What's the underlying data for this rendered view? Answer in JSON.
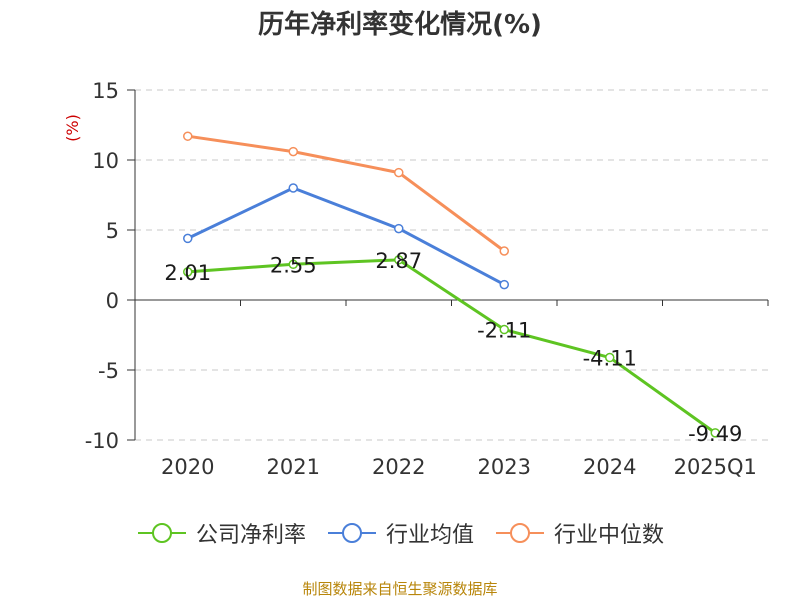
{
  "title": "历年净利率变化情况(%)",
  "footer": "制图数据来自恒生聚源数据库",
  "chart_data": {
    "type": "line",
    "categories": [
      "2020",
      "2021",
      "2022",
      "2023",
      "2024",
      "2025Q1"
    ],
    "ylabel": "(%)",
    "ylim": [
      -10,
      15
    ],
    "yticks": [
      15,
      10,
      5,
      0,
      -5,
      -10
    ],
    "grid": true,
    "legend_position": "bottom",
    "series": [
      {
        "name": "公司净利率",
        "color": "#5ec422",
        "values": [
          2.01,
          2.55,
          2.87,
          -2.11,
          -4.11,
          -9.49
        ],
        "labels": [
          "2.01",
          "2.55",
          "2.87",
          "-2.11",
          "-4.11",
          "-9.49"
        ]
      },
      {
        "name": "行业均值",
        "color": "#4a7fd9",
        "values": [
          4.4,
          8.0,
          5.1,
          1.1,
          null,
          null
        ]
      },
      {
        "name": "行业中位数",
        "color": "#f68f5a",
        "values": [
          11.7,
          10.6,
          9.1,
          3.5,
          null,
          null
        ]
      }
    ]
  }
}
